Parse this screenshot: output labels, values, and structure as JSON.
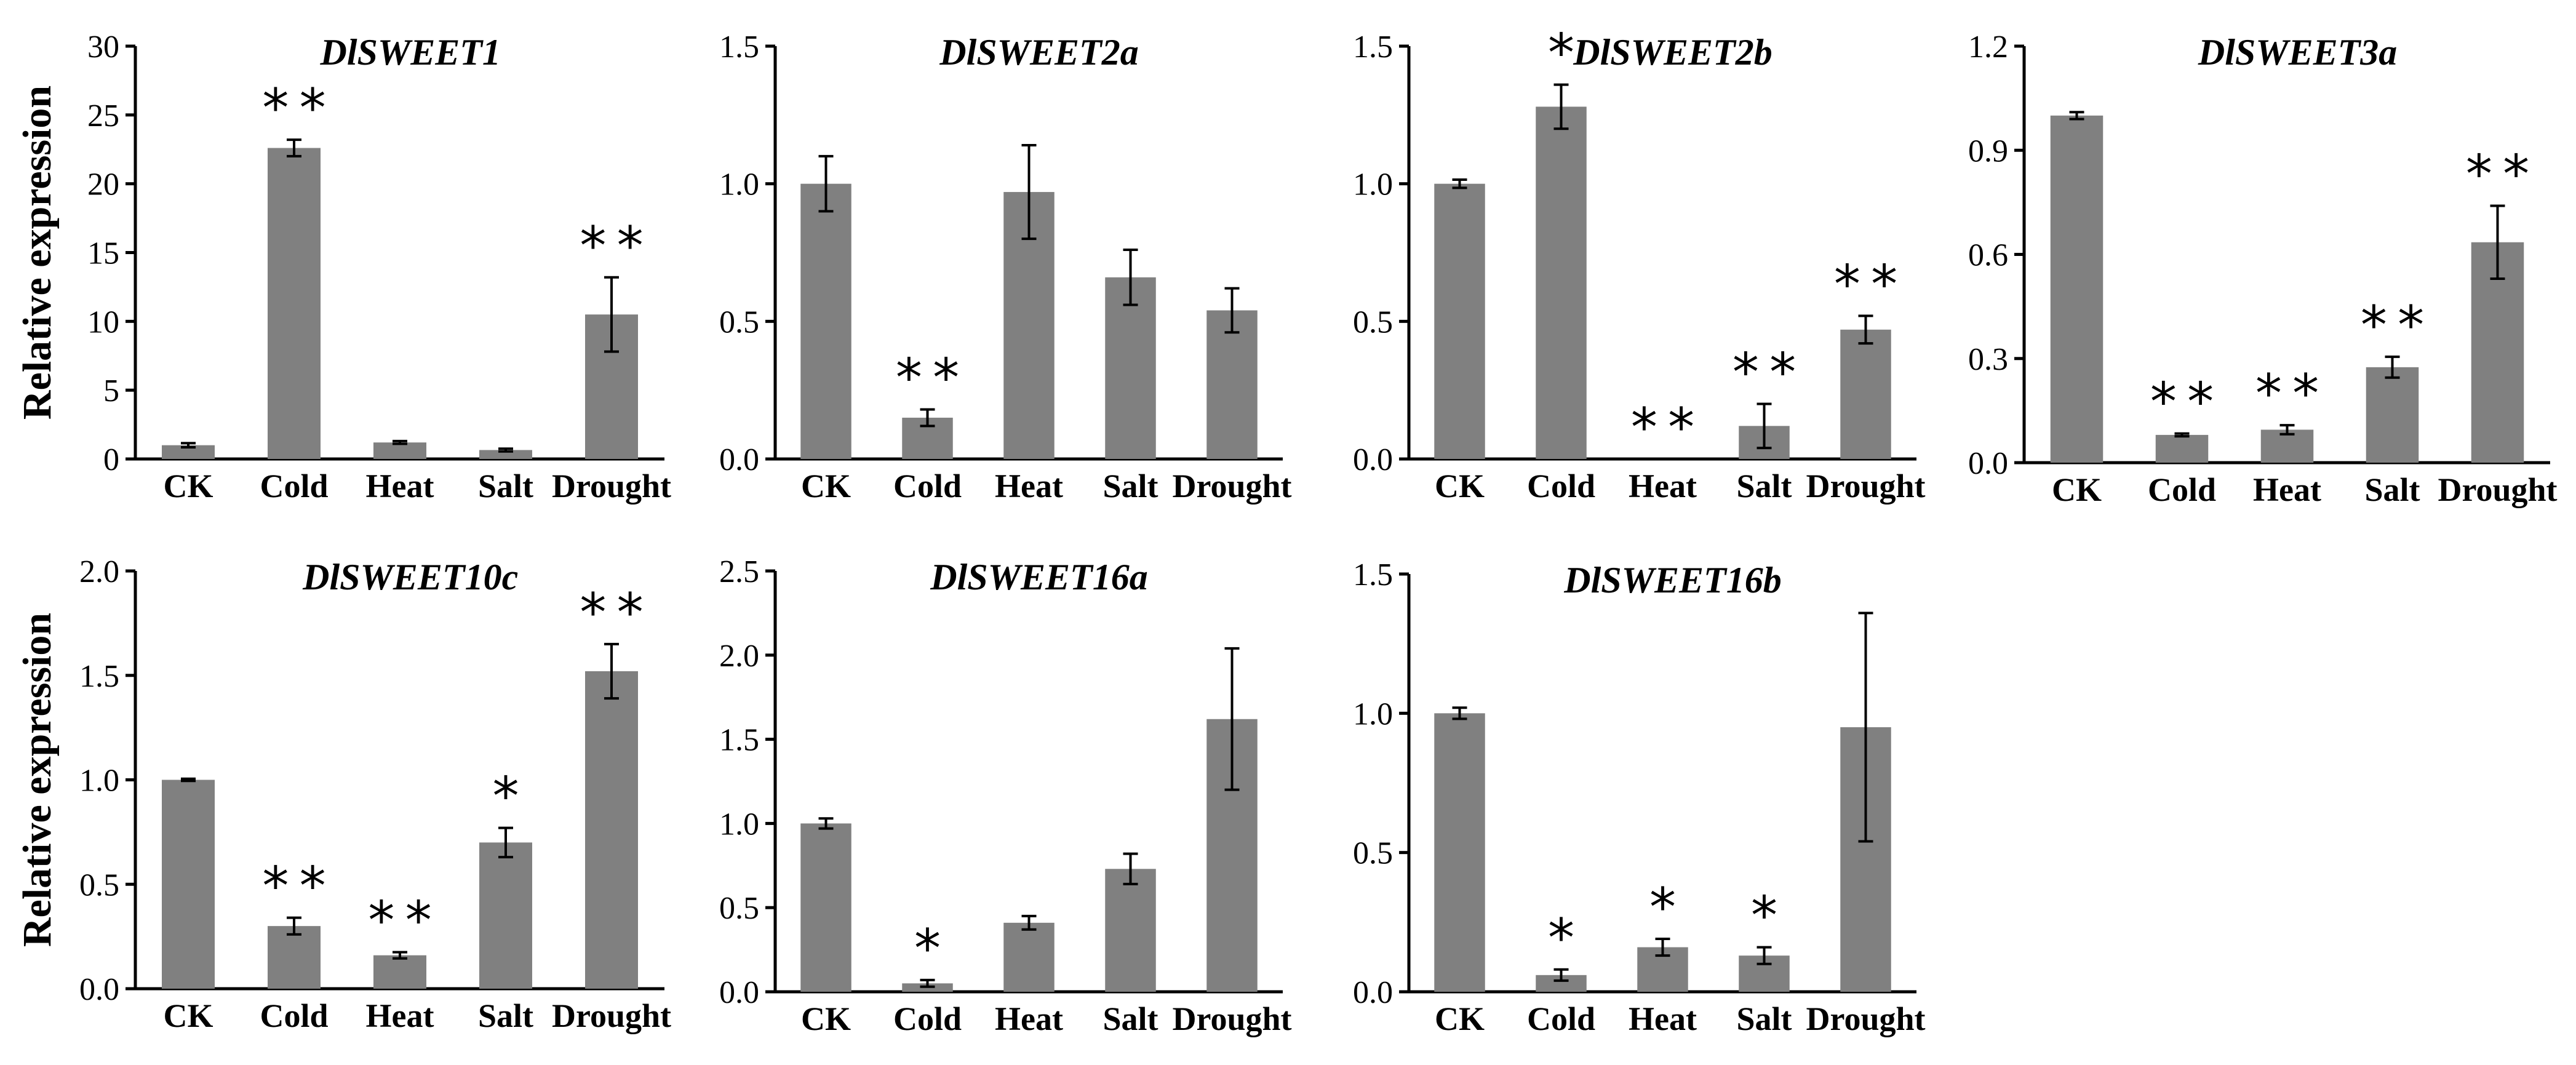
{
  "chart_data": [
    {
      "type": "bar",
      "title": "DlSWEET1",
      "ylabel": "Relative expression",
      "categories": [
        "CK",
        "Cold",
        "Heat",
        "Salt",
        "Drought"
      ],
      "values": [
        1.0,
        22.6,
        1.2,
        0.65,
        10.5
      ],
      "errors": [
        0.15,
        0.6,
        0.1,
        0.1,
        2.7
      ],
      "significance": [
        "",
        "**",
        "",
        "",
        "**"
      ],
      "ylim": [
        0,
        30
      ],
      "yticks": [
        "0",
        "5",
        "10",
        "15",
        "20",
        "25",
        "30"
      ]
    },
    {
      "type": "bar",
      "title": "DlSWEET2a",
      "ylabel": "",
      "categories": [
        "CK",
        "Cold",
        "Heat",
        "Salt",
        "Drought"
      ],
      "values": [
        1.0,
        0.15,
        0.97,
        0.66,
        0.54
      ],
      "errors": [
        0.1,
        0.03,
        0.17,
        0.1,
        0.08
      ],
      "significance": [
        "",
        "**",
        "",
        "",
        ""
      ],
      "ylim": [
        0,
        1.5
      ],
      "yticks": [
        "0.0",
        "0.5",
        "1.0",
        "1.5"
      ]
    },
    {
      "type": "bar",
      "title": "DlSWEET2b",
      "ylabel": "",
      "categories": [
        "CK",
        "Cold",
        "Heat",
        "Salt",
        "Drought"
      ],
      "values": [
        1.0,
        1.28,
        0.0,
        0.12,
        0.47
      ],
      "errors": [
        0.015,
        0.08,
        0.0,
        0.08,
        0.05
      ],
      "significance": [
        "",
        "*",
        "**",
        "**",
        "**"
      ],
      "ylim": [
        0,
        1.5
      ],
      "yticks": [
        "0.0",
        "0.5",
        "1.0",
        "1.5"
      ]
    },
    {
      "type": "bar",
      "title": "DlSWEET3a",
      "ylabel": "",
      "categories": [
        "CK",
        "Cold",
        "Heat",
        "Salt",
        "Drought"
      ],
      "values": [
        1.0,
        0.08,
        0.095,
        0.275,
        0.635
      ],
      "errors": [
        0.01,
        0.004,
        0.013,
        0.03,
        0.105
      ],
      "significance": [
        "",
        "**",
        "**",
        "**",
        "**"
      ],
      "ylim": [
        0,
        1.2
      ],
      "yticks": [
        "0.0",
        "0.3",
        "0.6",
        "0.9",
        "1.2"
      ]
    },
    {
      "type": "bar",
      "title": "DlSWEET10c",
      "ylabel": "Relative expression",
      "categories": [
        "CK",
        "Cold",
        "Heat",
        "Salt",
        "Drought"
      ],
      "values": [
        1.0,
        0.3,
        0.16,
        0.7,
        1.52
      ],
      "errors": [
        0.005,
        0.04,
        0.015,
        0.07,
        0.13
      ],
      "significance": [
        "",
        "**",
        "**",
        "*",
        "**"
      ],
      "ylim": [
        0,
        2.0
      ],
      "yticks": [
        "0.0",
        "0.5",
        "1.0",
        "1.5",
        "2.0"
      ]
    },
    {
      "type": "bar",
      "title": "DlSWEET16a",
      "ylabel": "",
      "categories": [
        "CK",
        "Cold",
        "Heat",
        "Salt",
        "Drought"
      ],
      "values": [
        1.0,
        0.05,
        0.41,
        0.73,
        1.62
      ],
      "errors": [
        0.03,
        0.02,
        0.04,
        0.09,
        0.42
      ],
      "significance": [
        "",
        "*",
        "",
        "",
        ""
      ],
      "ylim": [
        0,
        2.5
      ],
      "yticks": [
        "0.0",
        "0.5",
        "1.0",
        "1.5",
        "2.0",
        "2.5"
      ]
    },
    {
      "type": "bar",
      "title": "DlSWEET16b",
      "ylabel": "",
      "categories": [
        "CK",
        "Cold",
        "Heat",
        "Salt",
        "Drought"
      ],
      "values": [
        1.0,
        0.06,
        0.16,
        0.13,
        0.95
      ],
      "errors": [
        0.02,
        0.02,
        0.03,
        0.03,
        0.41
      ],
      "significance": [
        "",
        "*",
        "*",
        "*",
        ""
      ],
      "ylim": [
        0,
        1.5
      ],
      "yticks": [
        "0.0",
        "0.5",
        "1.0",
        "1.5"
      ]
    }
  ]
}
